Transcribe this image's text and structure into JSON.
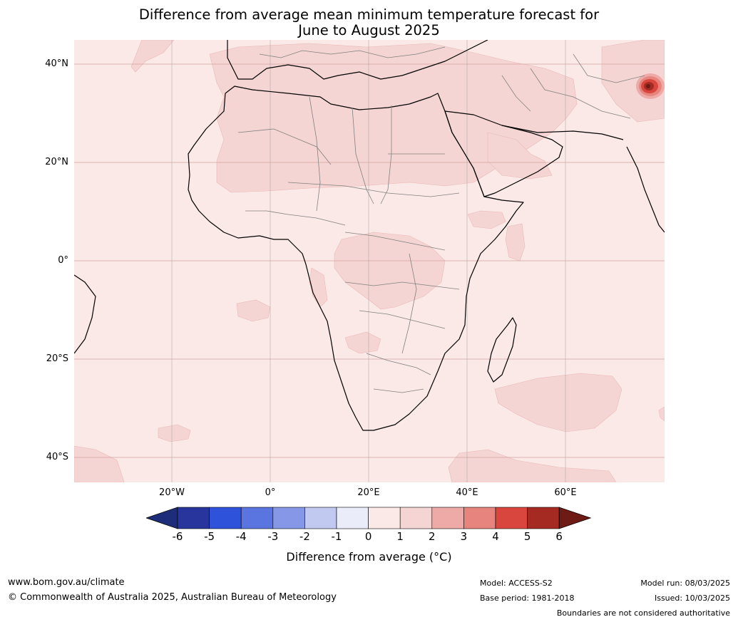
{
  "title": {
    "line1": "Difference from average mean minimum temperature forecast for",
    "line2": "June to August 2025"
  },
  "map": {
    "region": "Africa",
    "lat_labels": [
      "40°N",
      "20°N",
      "0°",
      "20°S",
      "40°S"
    ],
    "lon_labels": [
      "20°W",
      "0°",
      "20°E",
      "40°E",
      "60°E"
    ],
    "colors": {
      "ocean_base": "#fbe9e7",
      "anomaly_1_2": "#f5d5d3",
      "anomaly_2_3": "#edaaa6",
      "anomaly_3_4": "#e6847d",
      "anomaly_4_5": "#d9463d",
      "anomaly_5_6": "#a52a22",
      "coast": "#000000",
      "borders": "#808080",
      "grid": "#d4a0a0"
    }
  },
  "colorbar": {
    "label": "Difference from average (°C)",
    "ticks": [
      "-6",
      "-5",
      "-4",
      "-3",
      "-2",
      "-1",
      "0",
      "1",
      "2",
      "3",
      "4",
      "5",
      "6"
    ],
    "bins": [
      "#27359c",
      "#2f52db",
      "#5a74e0",
      "#8597e6",
      "#c2c9f0",
      "#eaecfa",
      "#fbe9e7",
      "#f5d5d3",
      "#edaaa6",
      "#e6847d",
      "#d9463d",
      "#a52a22"
    ],
    "low_extend": "#1e2d7a",
    "high_extend": "#6e1b15"
  },
  "footer": {
    "website": "www.bom.gov.au/climate",
    "copyright": "© Commonwealth of Australia 2025, Australian Bureau of Meteorology",
    "model": "Model: ACCESS-S2",
    "base_period": "Base period: 1981-2018",
    "model_run": "Model run: 08/03/2025",
    "issued": "Issued: 10/03/2025",
    "disclaimer": "Boundaries are not considered authoritative"
  }
}
